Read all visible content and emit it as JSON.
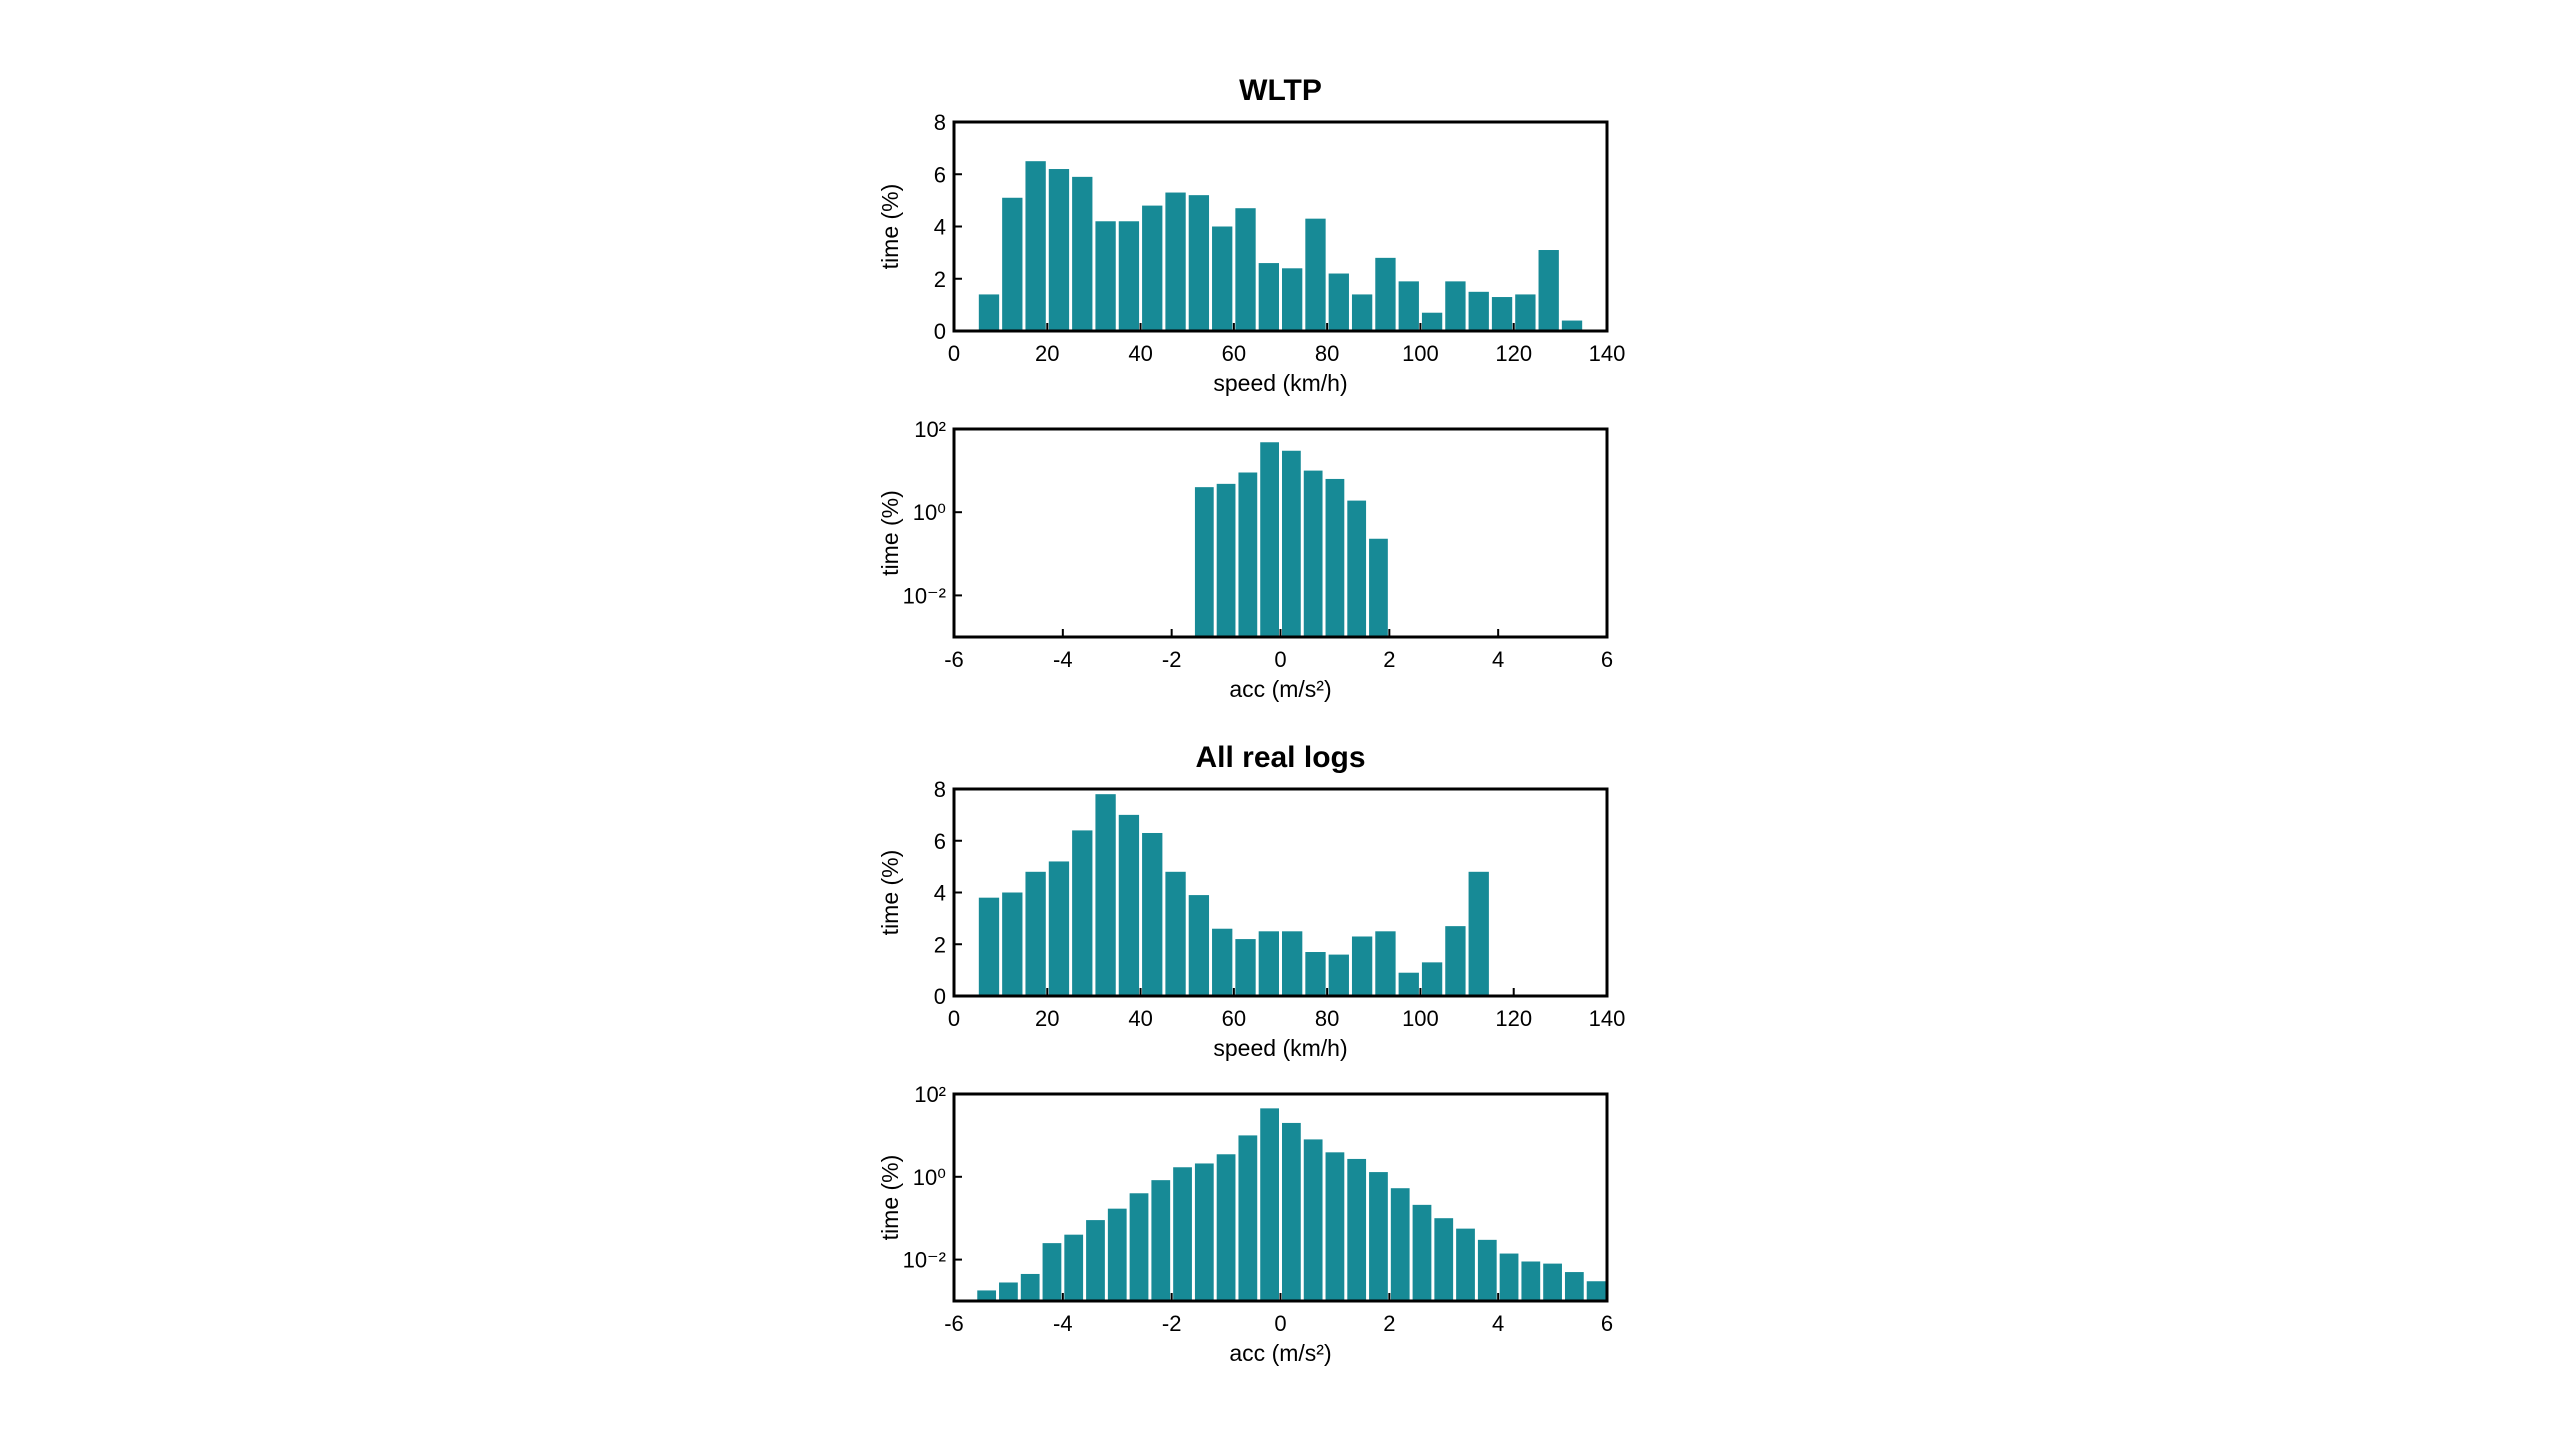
{
  "chart_data": [
    {
      "type": "histogram",
      "title": "WLTP",
      "xlabel": "speed (km/h)",
      "ylabel": "time (%)",
      "color": "#178a96",
      "bins": [
        5,
        10,
        15,
        20,
        25,
        30,
        35,
        40,
        45,
        50,
        55,
        60,
        65,
        70,
        75,
        80,
        85,
        90,
        95,
        100,
        105,
        110,
        115,
        120,
        125,
        130,
        135
      ],
      "values": [
        1.4,
        5.1,
        6.5,
        6.2,
        5.9,
        4.2,
        4.2,
        4.8,
        5.3,
        5.2,
        4.0,
        4.7,
        2.6,
        2.4,
        4.3,
        2.2,
        1.4,
        2.8,
        1.9,
        0.7,
        1.9,
        1.5,
        1.3,
        1.4,
        3.1,
        0.4
      ],
      "xlim": [
        0,
        140
      ],
      "xticks": [
        0,
        20,
        40,
        60,
        80,
        100,
        120,
        140
      ],
      "ylim": [
        0,
        8
      ],
      "yticks": [
        0,
        2,
        4,
        6,
        8
      ],
      "log_y": false
    },
    {
      "type": "histogram",
      "xlabel": "acc (m/s²)",
      "ylabel": "time (%)",
      "color": "#178a96",
      "bins": [
        -1.6,
        -1.2,
        -0.8,
        -0.4,
        0,
        0.4,
        0.8,
        1.2,
        1.6,
        2.0
      ],
      "values": [
        4,
        4.8,
        9,
        48,
        30,
        10,
        6.3,
        1.9,
        0.23
      ],
      "xlim": [
        -6,
        6
      ],
      "xticks": [
        -6,
        -4,
        -2,
        0,
        2,
        4,
        6
      ],
      "ylim": [
        0.001,
        100
      ],
      "yticks": [
        {
          "value": 0.01,
          "label": "10⁻²"
        },
        {
          "value": 1,
          "label": "10⁰"
        },
        {
          "value": 100,
          "label": "10²"
        }
      ],
      "log_y": true
    },
    {
      "type": "histogram",
      "title": "All real logs",
      "xlabel": "speed (km/h)",
      "ylabel": "time (%)",
      "color": "#178a96",
      "bins": [
        5,
        10,
        15,
        20,
        25,
        30,
        35,
        40,
        45,
        50,
        55,
        60,
        65,
        70,
        75,
        80,
        85,
        90,
        95,
        100,
        105,
        110,
        115
      ],
      "values": [
        3.8,
        4.0,
        4.8,
        5.2,
        6.4,
        7.8,
        7.0,
        6.3,
        4.8,
        3.9,
        2.6,
        2.2,
        2.5,
        2.5,
        1.7,
        1.6,
        2.3,
        2.5,
        0.9,
        1.3,
        2.7,
        4.8
      ],
      "xlim": [
        0,
        140
      ],
      "xticks": [
        0,
        20,
        40,
        60,
        80,
        100,
        120,
        140
      ],
      "ylim": [
        0,
        8
      ],
      "yticks": [
        0,
        2,
        4,
        6,
        8
      ],
      "log_y": false
    },
    {
      "type": "histogram",
      "xlabel": "acc (m/s²)",
      "ylabel": "time (%)",
      "color": "#178a96",
      "bins": [
        -5.6,
        -5.2,
        -4.8,
        -4.4,
        -4.0,
        -3.6,
        -3.2,
        -2.8,
        -2.4,
        -2.0,
        -1.6,
        -1.2,
        -0.8,
        -0.4,
        0,
        0.4,
        0.8,
        1.2,
        1.6,
        2.0,
        2.4,
        2.8,
        3.2,
        3.6,
        4.0,
        4.4,
        4.8,
        5.2,
        5.6,
        6.0
      ],
      "values": [
        0.0018,
        0.0028,
        0.0045,
        0.025,
        0.04,
        0.09,
        0.17,
        0.4,
        0.83,
        1.7,
        2.1,
        3.5,
        10,
        45,
        20,
        8,
        3.9,
        2.7,
        1.3,
        0.53,
        0.21,
        0.1,
        0.056,
        0.03,
        0.014,
        0.009,
        0.008,
        0.005,
        0.003
      ],
      "xlim": [
        -6,
        6
      ],
      "xticks": [
        -6,
        -4,
        -2,
        0,
        2,
        4,
        6
      ],
      "ylim": [
        0.001,
        100
      ],
      "yticks": [
        {
          "value": 0.01,
          "label": "10⁻²"
        },
        {
          "value": 1,
          "label": "10⁰"
        },
        {
          "value": 100,
          "label": "10²"
        }
      ],
      "log_y": true
    }
  ]
}
